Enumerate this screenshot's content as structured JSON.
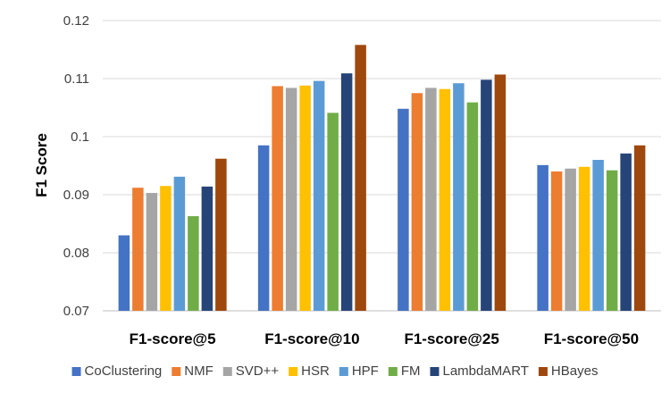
{
  "chart_data": {
    "type": "bar",
    "ylabel": "F1 Score",
    "xlabel": "",
    "ylim": [
      0.07,
      0.12
    ],
    "yticks": [
      "0.07",
      "0.08",
      "0.09",
      "0.1",
      "0.11",
      "0.12"
    ],
    "grid": true,
    "legend_position": "bottom",
    "categories": [
      "F1-score@5",
      "F1-score@10",
      "F1-score@25",
      "F1-score@50"
    ],
    "series": [
      {
        "name": "CoClustering",
        "color": "#4472C4",
        "values": [
          0.083,
          0.0985,
          0.1048,
          0.0951
        ]
      },
      {
        "name": "NMF",
        "color": "#ED7D31",
        "values": [
          0.0912,
          0.1087,
          0.1075,
          0.094
        ]
      },
      {
        "name": "SVD++",
        "color": "#A5A5A5",
        "values": [
          0.0903,
          0.1084,
          0.1084,
          0.0945
        ]
      },
      {
        "name": "HSR",
        "color": "#FFC000",
        "values": [
          0.0915,
          0.1088,
          0.1082,
          0.0948
        ]
      },
      {
        "name": "HPF",
        "color": "#5B9BD5",
        "values": [
          0.0931,
          0.1096,
          0.1092,
          0.096
        ]
      },
      {
        "name": "FM",
        "color": "#70AD47",
        "values": [
          0.0863,
          0.1041,
          0.1059,
          0.0942
        ]
      },
      {
        "name": "LambdaMART",
        "color": "#264478",
        "values": [
          0.0914,
          0.1109,
          0.1098,
          0.0971
        ]
      },
      {
        "name": "HBayes",
        "color": "#9E480E",
        "values": [
          0.0962,
          0.1158,
          0.1107,
          0.0985
        ]
      }
    ]
  }
}
